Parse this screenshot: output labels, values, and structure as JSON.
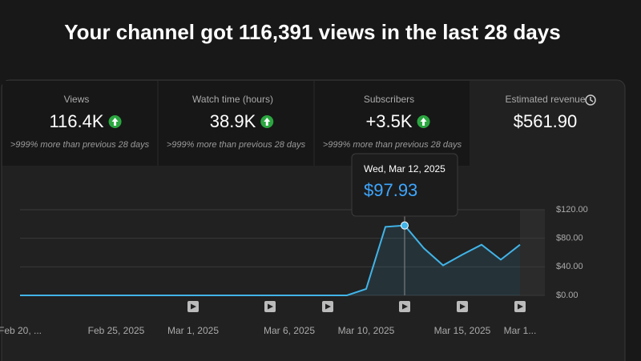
{
  "header": {
    "title": "Your channel got 116,391 views in the last 28 days"
  },
  "cards": [
    {
      "title": "Views",
      "value": "116.4K",
      "note": ">999% more than previous 28 days"
    },
    {
      "title": "Watch time (hours)",
      "value": "38.9K",
      "note": ">999% more than previous 28 days"
    },
    {
      "title": "Subscribers",
      "value": "+3.5K",
      "note": ">999% more than previous 28 days"
    },
    {
      "title": "Estimated revenue",
      "value": "$561.90"
    }
  ],
  "tooltip": {
    "title": "Wed, Mar 12, 2025",
    "value": "$97.93"
  },
  "chart_data": {
    "type": "line",
    "x": [
      "Feb 20, 2025",
      "Feb 21, 2025",
      "Feb 22, 2025",
      "Feb 23, 2025",
      "Feb 24, 2025",
      "Feb 25, 2025",
      "Feb 26, 2025",
      "Feb 27, 2025",
      "Feb 28, 2025",
      "Mar 1, 2025",
      "Mar 2, 2025",
      "Mar 3, 2025",
      "Mar 4, 2025",
      "Mar 5, 2025",
      "Mar 6, 2025",
      "Mar 7, 2025",
      "Mar 8, 2025",
      "Mar 9, 2025",
      "Mar 10, 2025",
      "Mar 11, 2025",
      "Mar 12, 2025",
      "Mar 13, 2025",
      "Mar 14, 2025",
      "Mar 15, 2025",
      "Mar 16, 2025",
      "Mar 17, 2025",
      "Mar 18, 2025"
    ],
    "series": [
      {
        "color": "#41b4e8",
        "values": [
          0,
          0,
          0,
          0,
          0,
          0,
          0,
          0,
          0,
          0,
          0,
          0,
          0,
          0,
          0,
          0,
          0,
          0,
          9,
          96,
          97.93,
          66,
          42,
          57,
          71,
          50,
          71
        ]
      }
    ],
    "ylim": [
      0,
      120
    ],
    "yticks": [
      {
        "value": 0,
        "label": "$0.00"
      },
      {
        "value": 40,
        "label": "$40.00"
      },
      {
        "value": 80,
        "label": "$80.00"
      },
      {
        "value": 120,
        "label": "$120.00"
      }
    ],
    "xticks": [
      {
        "value": "Feb 20, 2025",
        "label": "Feb 20, ..."
      },
      {
        "value": "Feb 25, 2025",
        "label": "Feb 25, 2025"
      },
      {
        "value": "Mar 1, 2025",
        "label": "Mar 1, 2025"
      },
      {
        "value": "Mar 6, 2025",
        "label": "Mar 6, 2025"
      },
      {
        "value": "Mar 10, 2025",
        "label": "Mar 10, 2025"
      },
      {
        "value": "Mar 15, 2025",
        "label": "Mar 15, 2025"
      },
      {
        "value": "Mar 18, 2025",
        "label": "Mar 1..."
      }
    ],
    "video_markers": [
      "Mar 1, 2025",
      "Mar 5, 2025",
      "Mar 8, 2025",
      "Mar 12, 2025",
      "Mar 15, 2025",
      "Mar 18, 2025"
    ],
    "grid": true
  }
}
